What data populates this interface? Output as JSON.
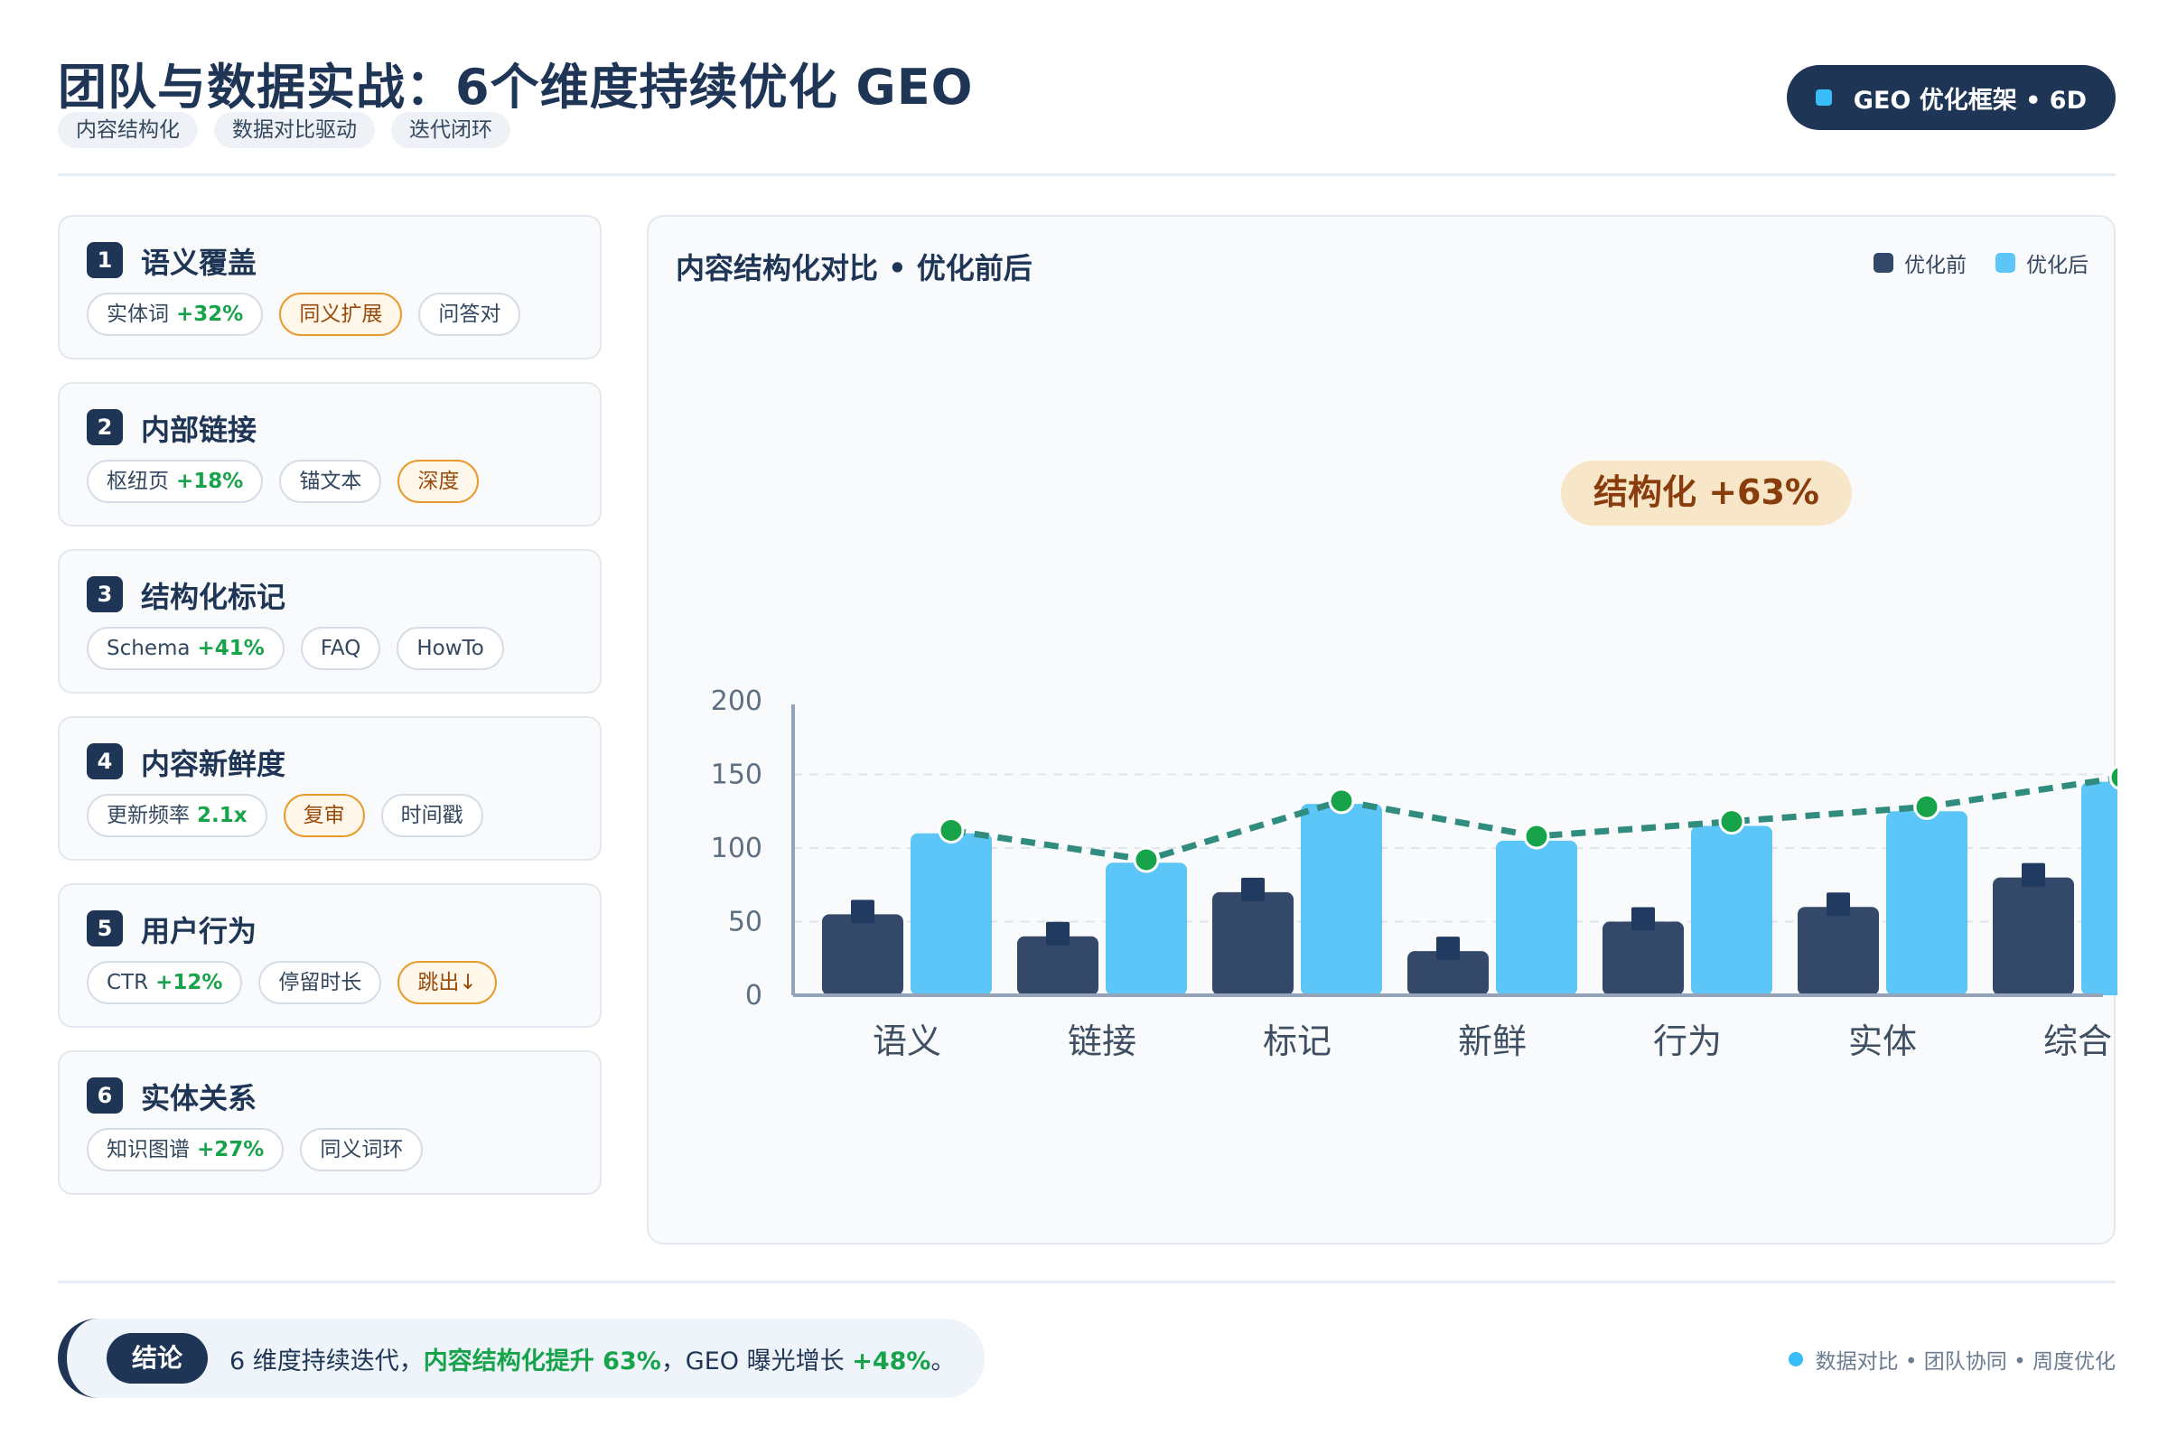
{
  "header": {
    "title": "团队与数据实战：6个维度持续优化 GEO",
    "tags": [
      "内容结构化",
      "数据对比驱动",
      "迭代闭环"
    ],
    "badge": "GEO 优化框架 • 6D"
  },
  "cards": [
    {
      "num": "1",
      "title": "语义覆盖",
      "pills": [
        {
          "label": "实体词",
          "pct": "+32%",
          "style": "normal"
        },
        {
          "label": "同义扩展",
          "pct": "",
          "style": "warn"
        },
        {
          "label": "问答对",
          "pct": "",
          "style": "normal"
        }
      ]
    },
    {
      "num": "2",
      "title": "内部链接",
      "pills": [
        {
          "label": "枢纽页",
          "pct": "+18%",
          "style": "normal"
        },
        {
          "label": "锚文本",
          "pct": "",
          "style": "normal"
        },
        {
          "label": "深度",
          "pct": "",
          "style": "warn"
        }
      ]
    },
    {
      "num": "3",
      "title": "结构化标记",
      "pills": [
        {
          "label": "Schema",
          "pct": "+41%",
          "style": "normal"
        },
        {
          "label": "FAQ",
          "pct": "",
          "style": "normal"
        },
        {
          "label": "HowTo",
          "pct": "",
          "style": "normal"
        }
      ]
    },
    {
      "num": "4",
      "title": "内容新鲜度",
      "pills": [
        {
          "label": "更新频率",
          "pct": "2.1x",
          "style": "normal"
        },
        {
          "label": "复审",
          "pct": "",
          "style": "warn"
        },
        {
          "label": "时间戳",
          "pct": "",
          "style": "normal"
        }
      ]
    },
    {
      "num": "5",
      "title": "用户行为",
      "pills": [
        {
          "label": "CTR",
          "pct": "+12%",
          "style": "normal"
        },
        {
          "label": "停留时长",
          "pct": "",
          "style": "normal"
        },
        {
          "label": "跳出↓",
          "pct": "",
          "style": "warn"
        }
      ]
    },
    {
      "num": "6",
      "title": "实体关系",
      "pills": [
        {
          "label": "知识图谱",
          "pct": "+27%",
          "style": "normal"
        },
        {
          "label": "同义词环",
          "pct": "",
          "style": "normal"
        }
      ]
    }
  ],
  "chart_title": "内容结构化对比 • 优化前后",
  "legend": {
    "before": "优化前",
    "after": "优化后"
  },
  "colors": {
    "before": "#34486a",
    "after": "#5bc6f7",
    "line": "#2f8c7e",
    "dot": "#16a34a",
    "accent_text": "#8a3d0c",
    "annotation_bg": "#f8e6c8"
  },
  "chart_data": {
    "type": "bar",
    "title": "内容结构化对比 • 优化前后",
    "categories": [
      "语义",
      "链接",
      "标记",
      "新鲜",
      "行为",
      "实体",
      "综合"
    ],
    "series": [
      {
        "name": "优化前",
        "values": [
          55,
          40,
          70,
          30,
          50,
          60,
          80
        ]
      },
      {
        "name": "优化后",
        "values": [
          110,
          90,
          130,
          105,
          115,
          125,
          145
        ]
      }
    ],
    "line": {
      "values": [
        112,
        92,
        132,
        108,
        118,
        128,
        148
      ]
    },
    "yticks": [
      0,
      50,
      100,
      150,
      200
    ],
    "ylim": [
      0,
      200
    ],
    "grid": true,
    "legend_position": "top-right",
    "annotation": "结构化 +63%"
  },
  "conclusion": {
    "tag": "结论",
    "text_pre": "6 维度持续迭代，",
    "highlight1": "内容结构化提升 63%",
    "text_mid": "，GEO 曝光增长 ",
    "highlight2": "+48%",
    "text_post": "。"
  },
  "footnote": "数据对比 • 团队协同 • 周度优化"
}
